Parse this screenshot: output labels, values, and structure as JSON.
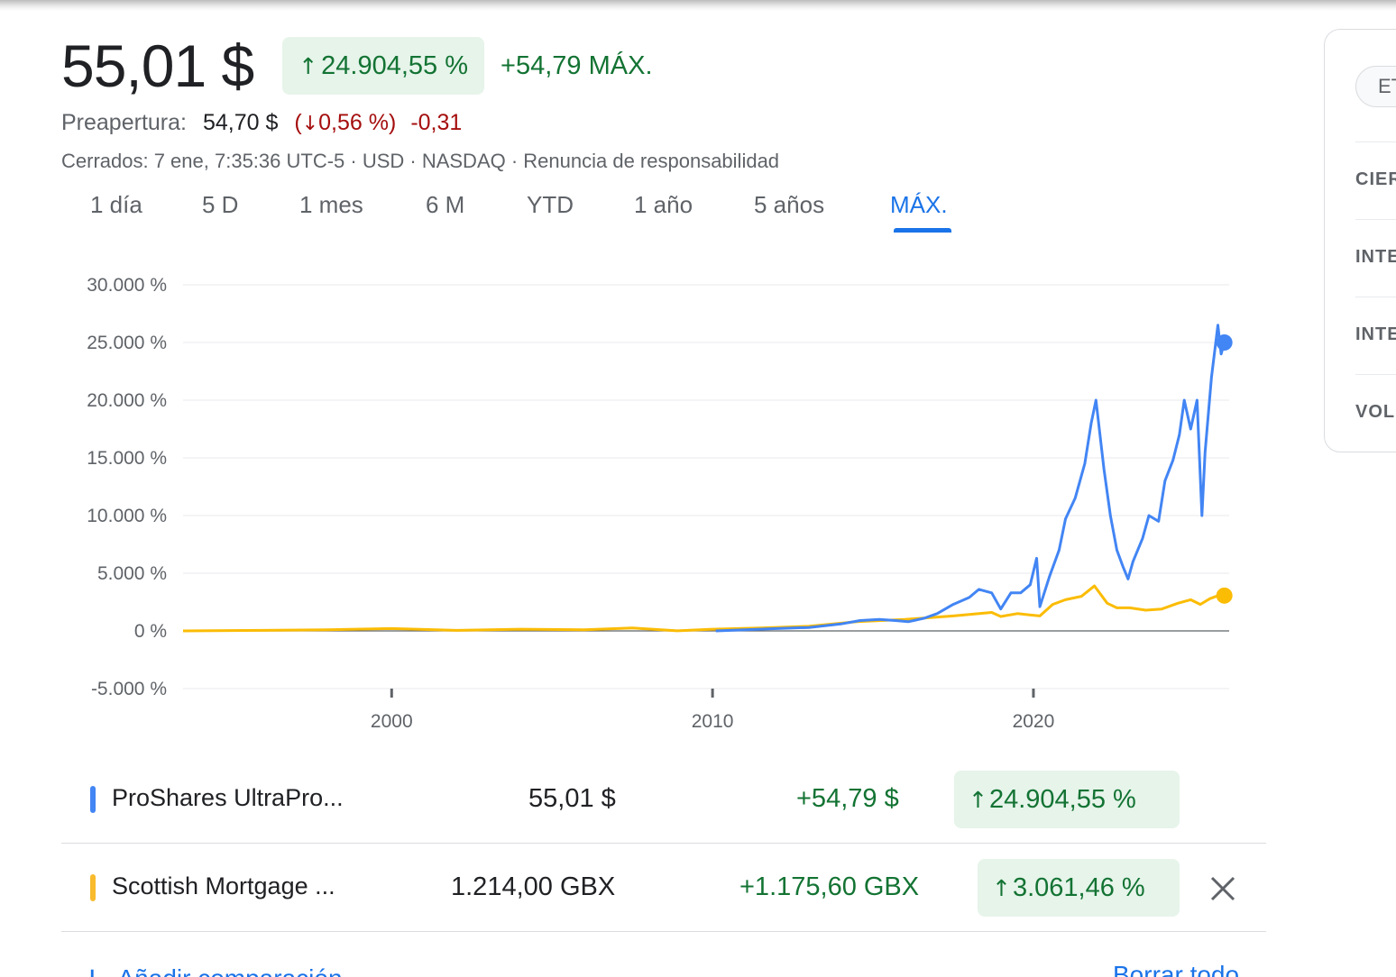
{
  "quote": {
    "price": "55,01 $",
    "pct_arrow": "↑",
    "pct_change": "24.904,55 %",
    "abs_change": "+54,79 MÁX."
  },
  "premarket": {
    "label": "Preapertura:",
    "price": "54,70 $",
    "open_paren": "(",
    "arrow": "↓",
    "pct": "0,56 %",
    "close_paren": ")",
    "change": "-0,31"
  },
  "meta_line": "Cerrados: 7 ene, 7:35:36 UTC-5 · USD · NASDAQ · Renuncia de responsabilidad",
  "range_tabs": [
    {
      "label": "1 día"
    },
    {
      "label": "5 D"
    },
    {
      "label": "1 mes"
    },
    {
      "label": "6 M"
    },
    {
      "label": "YTD"
    },
    {
      "label": "1 año"
    },
    {
      "label": "5 años"
    },
    {
      "label": "MÁX.",
      "active": true
    }
  ],
  "chart_data": {
    "type": "line",
    "y_tick_labels": [
      "30.000 %",
      "25.000 %",
      "20.000 %",
      "15.000 %",
      "10.000 %",
      "5.000 %",
      "0 %",
      "-5.000 %"
    ],
    "x_tick_labels": [
      "2000",
      "2010",
      "2020"
    ],
    "ylim": [
      -5000,
      30000
    ],
    "xlim": [
      1993.5,
      2026.1
    ],
    "y_unit": "%",
    "grid": true,
    "series": [
      {
        "name": "ProShares UltraPro...",
        "color": "#4285f4",
        "x": [
          2010.1,
          2011.0,
          2012.0,
          2013.0,
          2014.0,
          2014.6,
          2015.2,
          2015.7,
          2016.1,
          2016.6,
          2017.0,
          2017.5,
          2018.0,
          2018.3,
          2018.7,
          2018.98,
          2019.3,
          2019.6,
          2019.9,
          2020.1,
          2020.2,
          2020.5,
          2020.8,
          2021.0,
          2021.3,
          2021.6,
          2021.8,
          2021.95,
          2022.2,
          2022.4,
          2022.6,
          2022.8,
          2022.95,
          2023.1,
          2023.4,
          2023.6,
          2023.9,
          2024.1,
          2024.35,
          2024.55,
          2024.7,
          2024.9,
          2025.1,
          2025.25,
          2025.35,
          2025.55,
          2025.75,
          2025.85,
          2025.95
        ],
        "y": [
          0,
          100,
          200,
          300,
          600,
          900,
          1000,
          900,
          800,
          1100,
          1500,
          2300,
          2900,
          3600,
          3300,
          1900,
          3300,
          3300,
          4000,
          6300,
          2100,
          4700,
          7000,
          9700,
          11500,
          14500,
          18000,
          20000,
          14000,
          10000,
          7000,
          5500,
          4500,
          6000,
          8000,
          10000,
          9500,
          13000,
          14800,
          17000,
          20000,
          17500,
          20000,
          10000,
          15500,
          22000,
          26500,
          24000,
          25000
        ]
      },
      {
        "name": "Scottish Mortgage ...",
        "color": "#fbbc04",
        "x": [
          1993.5,
          1996.0,
          1998.0,
          2000.0,
          2002.0,
          2004.0,
          2006.0,
          2007.5,
          2008.9,
          2010.0,
          2011.5,
          2013.0,
          2014.5,
          2016.0,
          2017.5,
          2018.7,
          2018.98,
          2019.5,
          2020.2,
          2020.6,
          2021.0,
          2021.5,
          2021.9,
          2022.3,
          2022.6,
          2023.0,
          2023.5,
          2024.0,
          2024.5,
          2024.9,
          2025.2,
          2025.5,
          2025.8,
          2025.95
        ],
        "y": [
          0,
          50,
          100,
          200,
          50,
          150,
          100,
          250,
          10,
          150,
          250,
          400,
          800,
          1000,
          1300,
          1600,
          1250,
          1500,
          1300,
          2300,
          2700,
          3000,
          3900,
          2400,
          2000,
          2000,
          1800,
          1900,
          2400,
          2700,
          2300,
          2800,
          3100,
          3061
        ]
      }
    ]
  },
  "comparisons": [
    {
      "name": "ProShares UltraPro...",
      "price": "55,01 $",
      "change": "+54,79 $",
      "arrow": "↑",
      "pct": "24.904,55 %",
      "color": "#4285f4"
    },
    {
      "name": "Scottish Mortgage ...",
      "price": "1.214,00 GBX",
      "change": "+1.175,60 GBX",
      "arrow": "↑",
      "pct": "3.061,46 %",
      "color": "#f9bb2d"
    }
  ],
  "add_comparison": {
    "icon": "plus-icon",
    "label": "Añadir comparación"
  },
  "clear_all": "Borrar todo",
  "side_panel": {
    "chip": "ET",
    "rows": [
      "CIER",
      "INTE",
      "INTE",
      "VOL"
    ]
  },
  "colors": {
    "accent": "#1a73e8",
    "positive": "#137333",
    "negative": "#a50e0e",
    "positive_bg": "#e6f4ea"
  }
}
